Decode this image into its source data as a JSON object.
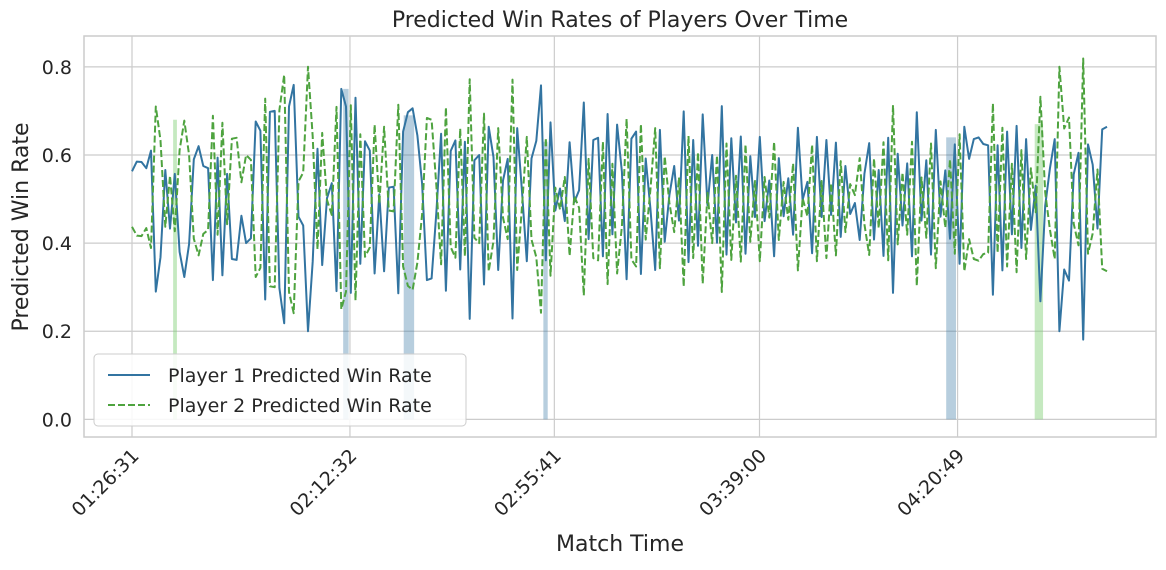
{
  "chart_data": {
    "type": "line",
    "title": "Predicted Win Rates of Players Over Time",
    "xlabel": "Match Time",
    "ylabel": "Predicted Win Rate",
    "x_range_seconds": [
      5191,
      17542
    ],
    "x_tick_labels": [
      "01:26:31",
      "02:12:32",
      "02:55:41",
      "03:39:00",
      "04:20:49"
    ],
    "x_tick_seconds": [
      5191,
      7952,
      10541,
      13140,
      15649
    ],
    "ylim": [
      -0.04,
      0.87
    ],
    "y_ticks": [
      0.0,
      0.2,
      0.4,
      0.6,
      0.8
    ],
    "y_tick_labels": [
      "0.0",
      "0.2",
      "0.4",
      "0.6",
      "0.8"
    ],
    "grid": true,
    "legend_position": "lower-left",
    "colors": {
      "player1": "#3274a1",
      "player2": "#4ea33f",
      "highlight1": "#3274a1",
      "highlight2": "#7ecf73",
      "grid": "#cccccc",
      "frame": "#cccccc"
    },
    "series": [
      {
        "name": "Player 1 Predicted Win Rate",
        "style": "solid",
        "values": [
          0.563,
          0.585,
          0.584,
          0.57,
          0.61,
          0.29,
          0.368,
          0.566,
          0.433,
          0.557,
          0.38,
          0.323,
          0.398,
          0.59,
          0.62,
          0.575,
          0.57,
          0.316,
          0.594,
          0.327,
          0.557,
          0.364,
          0.362,
          0.462,
          0.4,
          0.411,
          0.676,
          0.655,
          0.272,
          0.698,
          0.7,
          0.298,
          0.218,
          0.71,
          0.759,
          0.46,
          0.44,
          0.2,
          0.358,
          0.614,
          0.35,
          0.502,
          0.536,
          0.291,
          0.75,
          0.71,
          0.287,
          0.73,
          0.353,
          0.631,
          0.61,
          0.331,
          0.511,
          0.336,
          0.526,
          0.528,
          0.286,
          0.653,
          0.697,
          0.706,
          0.644,
          0.535,
          0.316,
          0.32,
          0.471,
          0.648,
          0.292,
          0.609,
          0.633,
          0.34,
          0.63,
          0.228,
          0.588,
          0.6,
          0.306,
          0.664,
          0.595,
          0.339,
          0.542,
          0.591,
          0.229,
          0.661,
          0.517,
          0.359,
          0.592,
          0.632,
          0.758,
          0.361,
          0.674,
          0.474,
          0.524,
          0.45,
          0.629,
          0.493,
          0.52,
          0.719,
          0.409,
          0.634,
          0.639,
          0.37,
          0.693,
          0.42,
          0.669,
          0.562,
          0.318,
          0.637,
          0.653,
          0.33,
          0.592,
          0.479,
          0.339,
          0.657,
          0.403,
          0.509,
          0.575,
          0.451,
          0.699,
          0.357,
          0.634,
          0.394,
          0.692,
          0.486,
          0.6,
          0.401,
          0.711,
          0.374,
          0.638,
          0.447,
          0.642,
          0.376,
          0.597,
          0.459,
          0.641,
          0.45,
          0.542,
          0.37,
          0.593,
          0.461,
          0.547,
          0.419,
          0.662,
          0.498,
          0.539,
          0.377,
          0.641,
          0.459,
          0.634,
          0.464,
          0.628,
          0.414,
          0.575,
          0.466,
          0.491,
          0.407,
          0.557,
          0.627,
          0.408,
          0.566,
          0.371,
          0.639,
          0.287,
          0.603,
          0.44,
          0.581,
          0.37,
          0.697,
          0.451,
          0.588,
          0.374,
          0.657,
          0.46,
          0.565,
          0.41,
          0.624,
          0.353,
          0.664,
          0.591,
          0.636,
          0.64,
          0.625,
          0.622,
          0.283,
          0.622,
          0.338,
          0.653,
          0.42,
          0.666,
          0.389,
          0.636,
          0.43,
          0.53,
          0.268,
          0.485,
          0.569,
          0.636,
          0.2,
          0.34,
          0.315,
          0.556,
          0.605,
          0.181,
          0.624,
          0.578,
          0.433,
          0.658,
          0.664
        ],
        "x_start_seconds": 5191,
        "x_end_seconds": 17542
      },
      {
        "name": "Player 2 Predicted Win Rate",
        "style": "dashed",
        "values": [
          0.437,
          0.417,
          0.416,
          0.434,
          0.389,
          0.71,
          0.633,
          0.437,
          0.553,
          0.427,
          0.611,
          0.678,
          0.6,
          0.41,
          0.372,
          0.421,
          0.43,
          0.689,
          0.419,
          0.673,
          0.443,
          0.637,
          0.639,
          0.538,
          0.6,
          0.589,
          0.323,
          0.344,
          0.728,
          0.302,
          0.3,
          0.702,
          0.782,
          0.289,
          0.241,
          0.54,
          0.56,
          0.8,
          0.642,
          0.386,
          0.65,
          0.498,
          0.464,
          0.709,
          0.25,
          0.29,
          0.713,
          0.27,
          0.647,
          0.369,
          0.39,
          0.669,
          0.489,
          0.664,
          0.474,
          0.472,
          0.714,
          0.347,
          0.303,
          0.294,
          0.356,
          0.465,
          0.684,
          0.68,
          0.529,
          0.352,
          0.708,
          0.391,
          0.367,
          0.66,
          0.37,
          0.772,
          0.412,
          0.4,
          0.694,
          0.336,
          0.405,
          0.661,
          0.458,
          0.409,
          0.771,
          0.339,
          0.483,
          0.641,
          0.408,
          0.368,
          0.242,
          0.639,
          0.326,
          0.526,
          0.476,
          0.55,
          0.371,
          0.507,
          0.48,
          0.281,
          0.591,
          0.366,
          0.361,
          0.63,
          0.307,
          0.58,
          0.331,
          0.438,
          0.682,
          0.363,
          0.347,
          0.67,
          0.408,
          0.521,
          0.661,
          0.343,
          0.597,
          0.491,
          0.425,
          0.549,
          0.301,
          0.643,
          0.366,
          0.606,
          0.308,
          0.514,
          0.4,
          0.599,
          0.289,
          0.626,
          0.362,
          0.553,
          0.358,
          0.624,
          0.403,
          0.541,
          0.359,
          0.55,
          0.458,
          0.63,
          0.407,
          0.539,
          0.453,
          0.581,
          0.338,
          0.502,
          0.461,
          0.623,
          0.359,
          0.541,
          0.366,
          0.536,
          0.372,
          0.586,
          0.425,
          0.534,
          0.509,
          0.593,
          0.443,
          0.373,
          0.592,
          0.434,
          0.629,
          0.361,
          0.713,
          0.397,
          0.56,
          0.419,
          0.63,
          0.303,
          0.549,
          0.412,
          0.626,
          0.343,
          0.54,
          0.435,
          0.59,
          0.376,
          0.647,
          0.336,
          0.409,
          0.364,
          0.36,
          0.375,
          0.378,
          0.717,
          0.378,
          0.662,
          0.347,
          0.58,
          0.334,
          0.611,
          0.364,
          0.57,
          0.47,
          0.732,
          0.515,
          0.431,
          0.364,
          0.8,
          0.66,
          0.685,
          0.444,
          0.395,
          0.819,
          0.376,
          0.422,
          0.567,
          0.342,
          0.336
        ]
      }
    ],
    "highlights": [
      {
        "series": "Player 1 Predicted Win Rate",
        "x_seconds_start": 7866,
        "x_seconds_end": 7935,
        "ymax": 0.75
      },
      {
        "series": "Player 1 Predicted Win Rate",
        "x_seconds_start": 8633,
        "x_seconds_end": 8765,
        "ymax": 0.69
      },
      {
        "series": "Player 1 Predicted Win Rate",
        "x_seconds_start": 10402,
        "x_seconds_end": 10457,
        "ymax": 0.63
      },
      {
        "series": "Player 1 Predicted Win Rate",
        "x_seconds_start": 15505,
        "x_seconds_end": 15629,
        "ymax": 0.64
      },
      {
        "series": "Player 2 Predicted Win Rate",
        "x_seconds_start": 5712,
        "x_seconds_end": 5760,
        "ymax": 0.68
      },
      {
        "series": "Player 2 Predicted Win Rate",
        "x_seconds_start": 16626,
        "x_seconds_end": 16732,
        "ymax": 0.67
      }
    ]
  }
}
